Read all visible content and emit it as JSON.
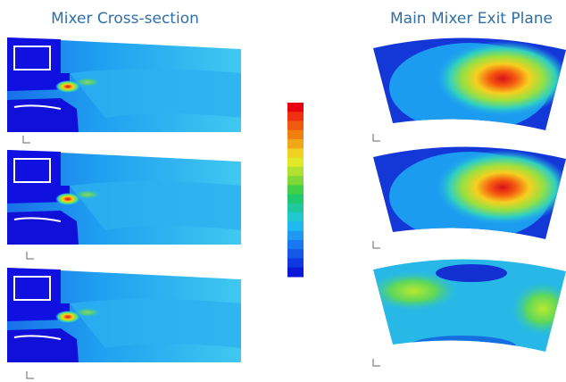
{
  "left_title": "Mixer Cross-section",
  "right_title": "Main Mixer Exit Plane"
}
